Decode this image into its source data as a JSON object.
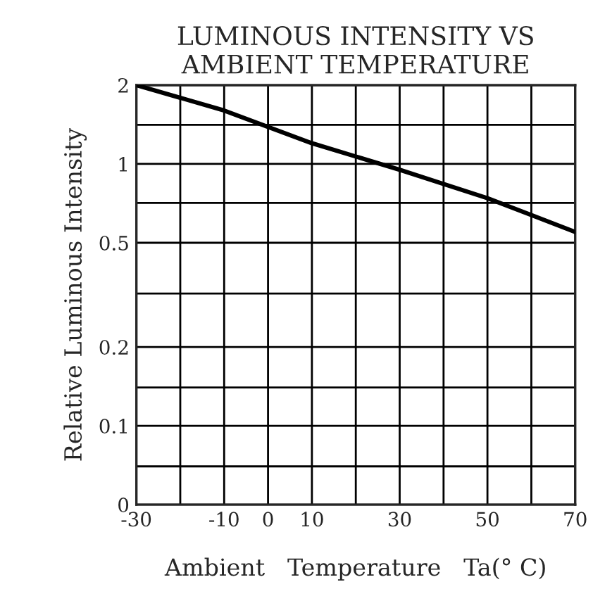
{
  "chart_data": {
    "type": "line",
    "title": "LUMINOUS INTENSITY VS\nAMBIENT TEMPERATURE",
    "xlabel": "Ambient   Temperature   Ta(° C)",
    "ylabel": "Relative Luminous Intensity",
    "x": [
      -30,
      -10,
      10,
      30,
      50,
      70
    ],
    "series": [
      {
        "color": "#000000",
        "values": [
          2,
          1.6,
          1.2,
          0.95,
          0.74,
          0.55
        ]
      }
    ],
    "log": "y",
    "xlim": [
      -30,
      70
    ],
    "ylim": [
      0.05,
      2
    ],
    "xticks": [
      -30,
      {
        "value": -20,
        "label": null
      },
      -10,
      0,
      10,
      {
        "value": 20,
        "label": null
      },
      30,
      {
        "value": 40,
        "label": null
      },
      50,
      {
        "value": 60,
        "label": null
      },
      70
    ],
    "yticks": [
      {
        "value": 0.05,
        "label": "0"
      },
      {
        "value": 0.07,
        "label": null
      },
      0.1,
      {
        "value": 0.14,
        "label": null
      },
      0.2,
      {
        "value": 0.32,
        "label": null
      },
      0.5,
      {
        "value": 0.71,
        "label": null
      },
      1,
      {
        "value": 1.41,
        "label": null
      },
      2
    ],
    "grid": true,
    "marker": "none",
    "line_style": "solid"
  }
}
